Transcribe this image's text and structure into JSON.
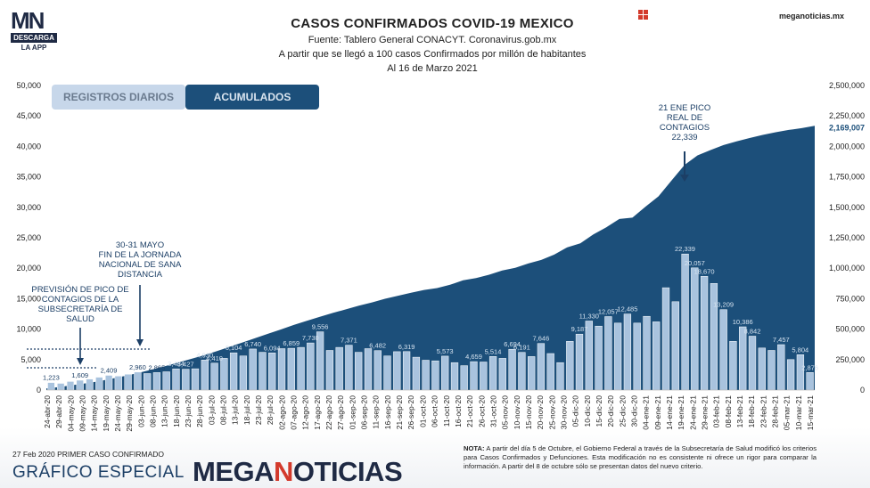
{
  "header": {
    "title": "CASOS CONFIRMADOS COVID-19 MEXICO",
    "source": "Fuente: Tablero General CONACYT. Coronavirus.gob.mx",
    "subtitle": "A partir que se llegó a 100 casos Confirmados por millón de habitantes",
    "date": "Al 16 de Marzo 2021"
  },
  "logo": {
    "letters_m": "M",
    "letters_n": "N",
    "bar": "DESCARGA",
    "app": "LA APP"
  },
  "brand_url": "meganoticias.mx",
  "tabs": {
    "daily": "REGISTROS DIARIOS",
    "accumulated": "ACUMULADOS"
  },
  "annotations": {
    "peak_label": [
      "21 ENE PICO",
      "REAL DE",
      "CONTAGIOS"
    ],
    "peak_value": "22,339",
    "jornada": [
      "30-31 MAYO",
      "FIN DE LA JORNADA",
      "NACIONAL DE SANA",
      "DISTANCIA"
    ],
    "prevision": [
      "PREVISIÓN DE PICO DE",
      "CONTAGIOS DE LA",
      "SUBSECRETARÍA DE",
      "SALUD"
    ]
  },
  "footer": {
    "first_case": "27 Feb 2020 PRIMER CASO CONFIRMADO",
    "special": "GRÁFICO ESPECIAL",
    "brand_part1": "MEGA",
    "brand_accent": "N",
    "brand_part2": "OTICIAS",
    "note_label": "NOTA:",
    "note_text": "A partir del día 5 de Octubre, el Gobierno Federal a través de la Subsecretaría de Salud modificó los criterios para Casos Confirmados y Defunciones. Esta modificación no es consistente ni ofrece un rigor para comparar la información. A partir del 8 de octubre sólo se presentan datos del nuevo criterio."
  },
  "colors": {
    "area": "#1c4f7a",
    "bars": "#a9c3de",
    "bar_edge": "#ffffff",
    "text_dark": "#1f2a44",
    "accent_red": "#d33a2c"
  },
  "chart_data": {
    "type": "bar",
    "title": "CASOS CONFIRMADOS COVID-19 MEXICO",
    "y_left": {
      "min": 0,
      "max": 50000,
      "ticks": [
        "0",
        "5,000",
        "10,000",
        "15,000",
        "20,000",
        "25,000",
        "30,000",
        "35,000",
        "40,000",
        "45,000",
        "50,000"
      ]
    },
    "y_right": {
      "min": 0,
      "max": 2500000,
      "ticks": [
        "0",
        "250,000",
        "500,000",
        "750,000",
        "1,000,000",
        "1,250,000",
        "1,500,000",
        "1,750,000",
        "2,000,000",
        "2,250,000",
        "2,500,000"
      ]
    },
    "x_ticks": [
      "24-abr-20",
      "29-abr-20",
      "04-may-20",
      "09-may-20",
      "14-may-20",
      "19-may-20",
      "24-may-20",
      "29-may-20",
      "03-jun-20",
      "08-jun-20",
      "13-jun-20",
      "18-jun-20",
      "23-jun-20",
      "28-jun-20",
      "03-jul-20",
      "08-jul-20",
      "13-jul-20",
      "18-jul-20",
      "23-jul-20",
      "28-jul-20",
      "02-ago-20",
      "07-ago-20",
      "12-ago-20",
      "17-ago-20",
      "22-ago-20",
      "27-ago-20",
      "01-sep-20",
      "06-sep-20",
      "11-sep-20",
      "16-sep-20",
      "21-sep-20",
      "26-sep-20",
      "01-oct-20",
      "06-oct-20",
      "11-oct-20",
      "16-oct-20",
      "21-oct-20",
      "26-oct-20",
      "31-oct-20",
      "05-nov-20",
      "10-nov-20",
      "15-nov-20",
      "20-nov-20",
      "25-nov-20",
      "30-nov-20",
      "05-dic-20",
      "10-dic-20",
      "15-dic-20",
      "20-dic-20",
      "25-dic-20",
      "30-dic-20",
      "04-ene-21",
      "09-ene-21",
      "14-ene-21",
      "19-ene-21",
      "24-ene-21",
      "29-ene-21",
      "03-feb-21",
      "08-feb-21",
      "13-feb-21",
      "18-feb-21",
      "23-feb-21",
      "28-feb-21",
      "05-mar-21",
      "10-mar-21",
      "15-mar-21"
    ],
    "series": [
      {
        "kind": "bar-daily",
        "axis": "left",
        "values": [
          1223,
          1100,
          1400,
          1609,
          1800,
          2100,
          2409,
          2300,
          2600,
          2960,
          2700,
          2865,
          3000,
          3484,
          3427,
          3500,
          4930,
          4410,
          5200,
          6104,
          5600,
          6740,
          6200,
          6094,
          6800,
          6859,
          7000,
          7730,
          9556,
          6500,
          7000,
          7371,
          6200,
          6800,
          6482,
          5600,
          6300,
          6319,
          5400,
          4900,
          4800,
          5573,
          4500,
          4000,
          4659,
          4600,
          5514,
          5200,
          6694,
          6191,
          5500,
          7646,
          6000,
          4500,
          8000,
          9187,
          11330,
          10500,
          12057,
          11000,
          12485,
          11000,
          12100,
          11200,
          16800,
          14500,
          22339,
          20057,
          18670,
          17500,
          13209,
          8000,
          10386,
          8842,
          6900,
          6500,
          7457,
          5000,
          5804,
          2876
        ]
      },
      {
        "kind": "area-cumulative",
        "axis": "right",
        "values": [
          13842,
          24905,
          40186,
          55000,
          72000,
          93000,
          115000,
          139000,
          165000,
          193000,
          222000,
          252000,
          282000,
          316000,
          352000,
          388000,
          425000,
          461000,
          497000,
          534000,
          569000,
          601000,
          633000,
          662000,
          693000,
          719000,
          749000,
          774000,
          799000,
          822000,
          837000,
          864000,
          901000,
          919000,
          947000,
          982000,
          1003000,
          1039000,
          1068000,
          1112000,
          1172000,
          1205000,
          1277000,
          1336000,
          1404000,
          1415000,
          1505000,
          1590000,
          1720000,
          1847000,
          1926000,
          1970000,
          2011000,
          2041000,
          2069000,
          2094000,
          2116000,
          2135000,
          2150000,
          2169007
        ]
      }
    ],
    "value_labels": [
      "1,223",
      "1,609",
      "2,409",
      "2,960",
      "2,865",
      "3,484",
      "3,427",
      "4,930",
      "4,410",
      "6,104",
      "6,740",
      "6,094",
      "6,859",
      "7,730",
      "9,556",
      "7,371",
      "6,482",
      "6,319",
      "5,573",
      "4,659",
      "5,514",
      "6,694",
      "6,191",
      "7,646",
      "9,187",
      "11,330",
      "12,057",
      "12,485",
      "22,339",
      "20,057",
      "18,670",
      "13,209",
      "10,386",
      "8,842",
      "7,457",
      "5,804",
      "2,876"
    ],
    "last_cumulative_label": "2,169,007"
  }
}
